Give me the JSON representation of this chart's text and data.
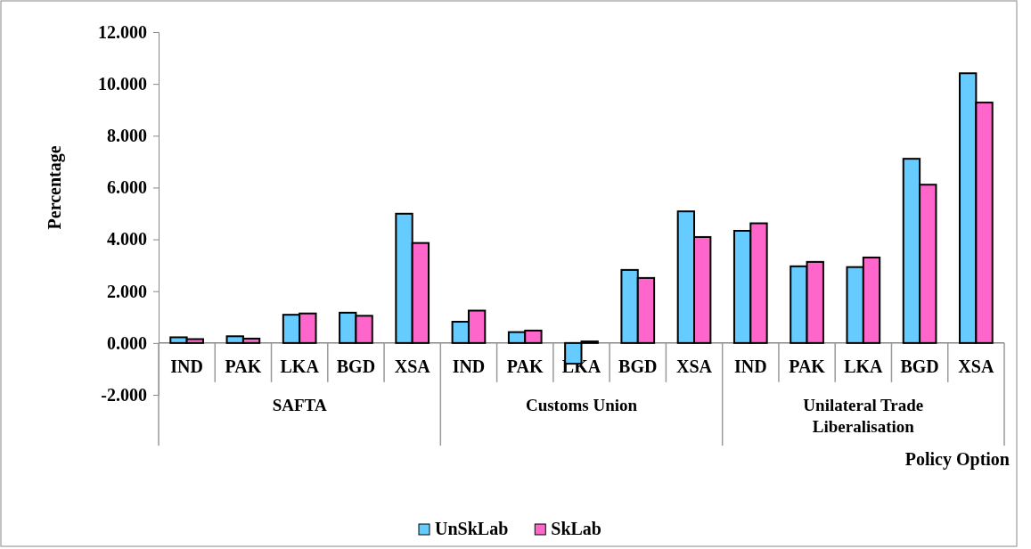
{
  "chart_data": {
    "type": "bar",
    "ylabel": "Percentage",
    "xlabel": "Policy Option",
    "categories": [
      "IND",
      "PAK",
      "LKA",
      "BGD",
      "XSA",
      "IND",
      "PAK",
      "LKA",
      "BGD",
      "XSA",
      "IND",
      "PAK",
      "LKA",
      "BGD",
      "XSA"
    ],
    "annotations": [
      "SAFTA",
      "Customs Union",
      "Unilateral Trade Liberalisation"
    ],
    "series": [
      {
        "name": "UnSkLab",
        "color": "#66ccff",
        "values": [
          0.22,
          0.26,
          1.09,
          1.17,
          4.99,
          0.82,
          0.42,
          -0.8,
          2.82,
          5.08,
          4.33,
          2.96,
          2.93,
          7.11,
          10.41
        ]
      },
      {
        "name": "SkLab",
        "color": "#ff66cc",
        "values": [
          0.15,
          0.17,
          1.14,
          1.05,
          3.86,
          1.25,
          0.48,
          0.06,
          2.51,
          4.09,
          4.62,
          3.13,
          3.3,
          6.11,
          9.28
        ]
      }
    ],
    "ylim": [
      -2,
      12
    ],
    "yticks": [
      {
        "value": -2,
        "label": "-2.000"
      },
      {
        "value": 0,
        "label": "0.000"
      },
      {
        "value": 2,
        "label": "2.000"
      },
      {
        "value": 4,
        "label": "4.000"
      },
      {
        "value": 6,
        "label": "6.000"
      },
      {
        "value": 8,
        "label": "8.000"
      },
      {
        "value": 10,
        "label": "10.000"
      },
      {
        "value": 12,
        "label": "12.000"
      }
    ],
    "grid": false,
    "legend": "bottom"
  }
}
